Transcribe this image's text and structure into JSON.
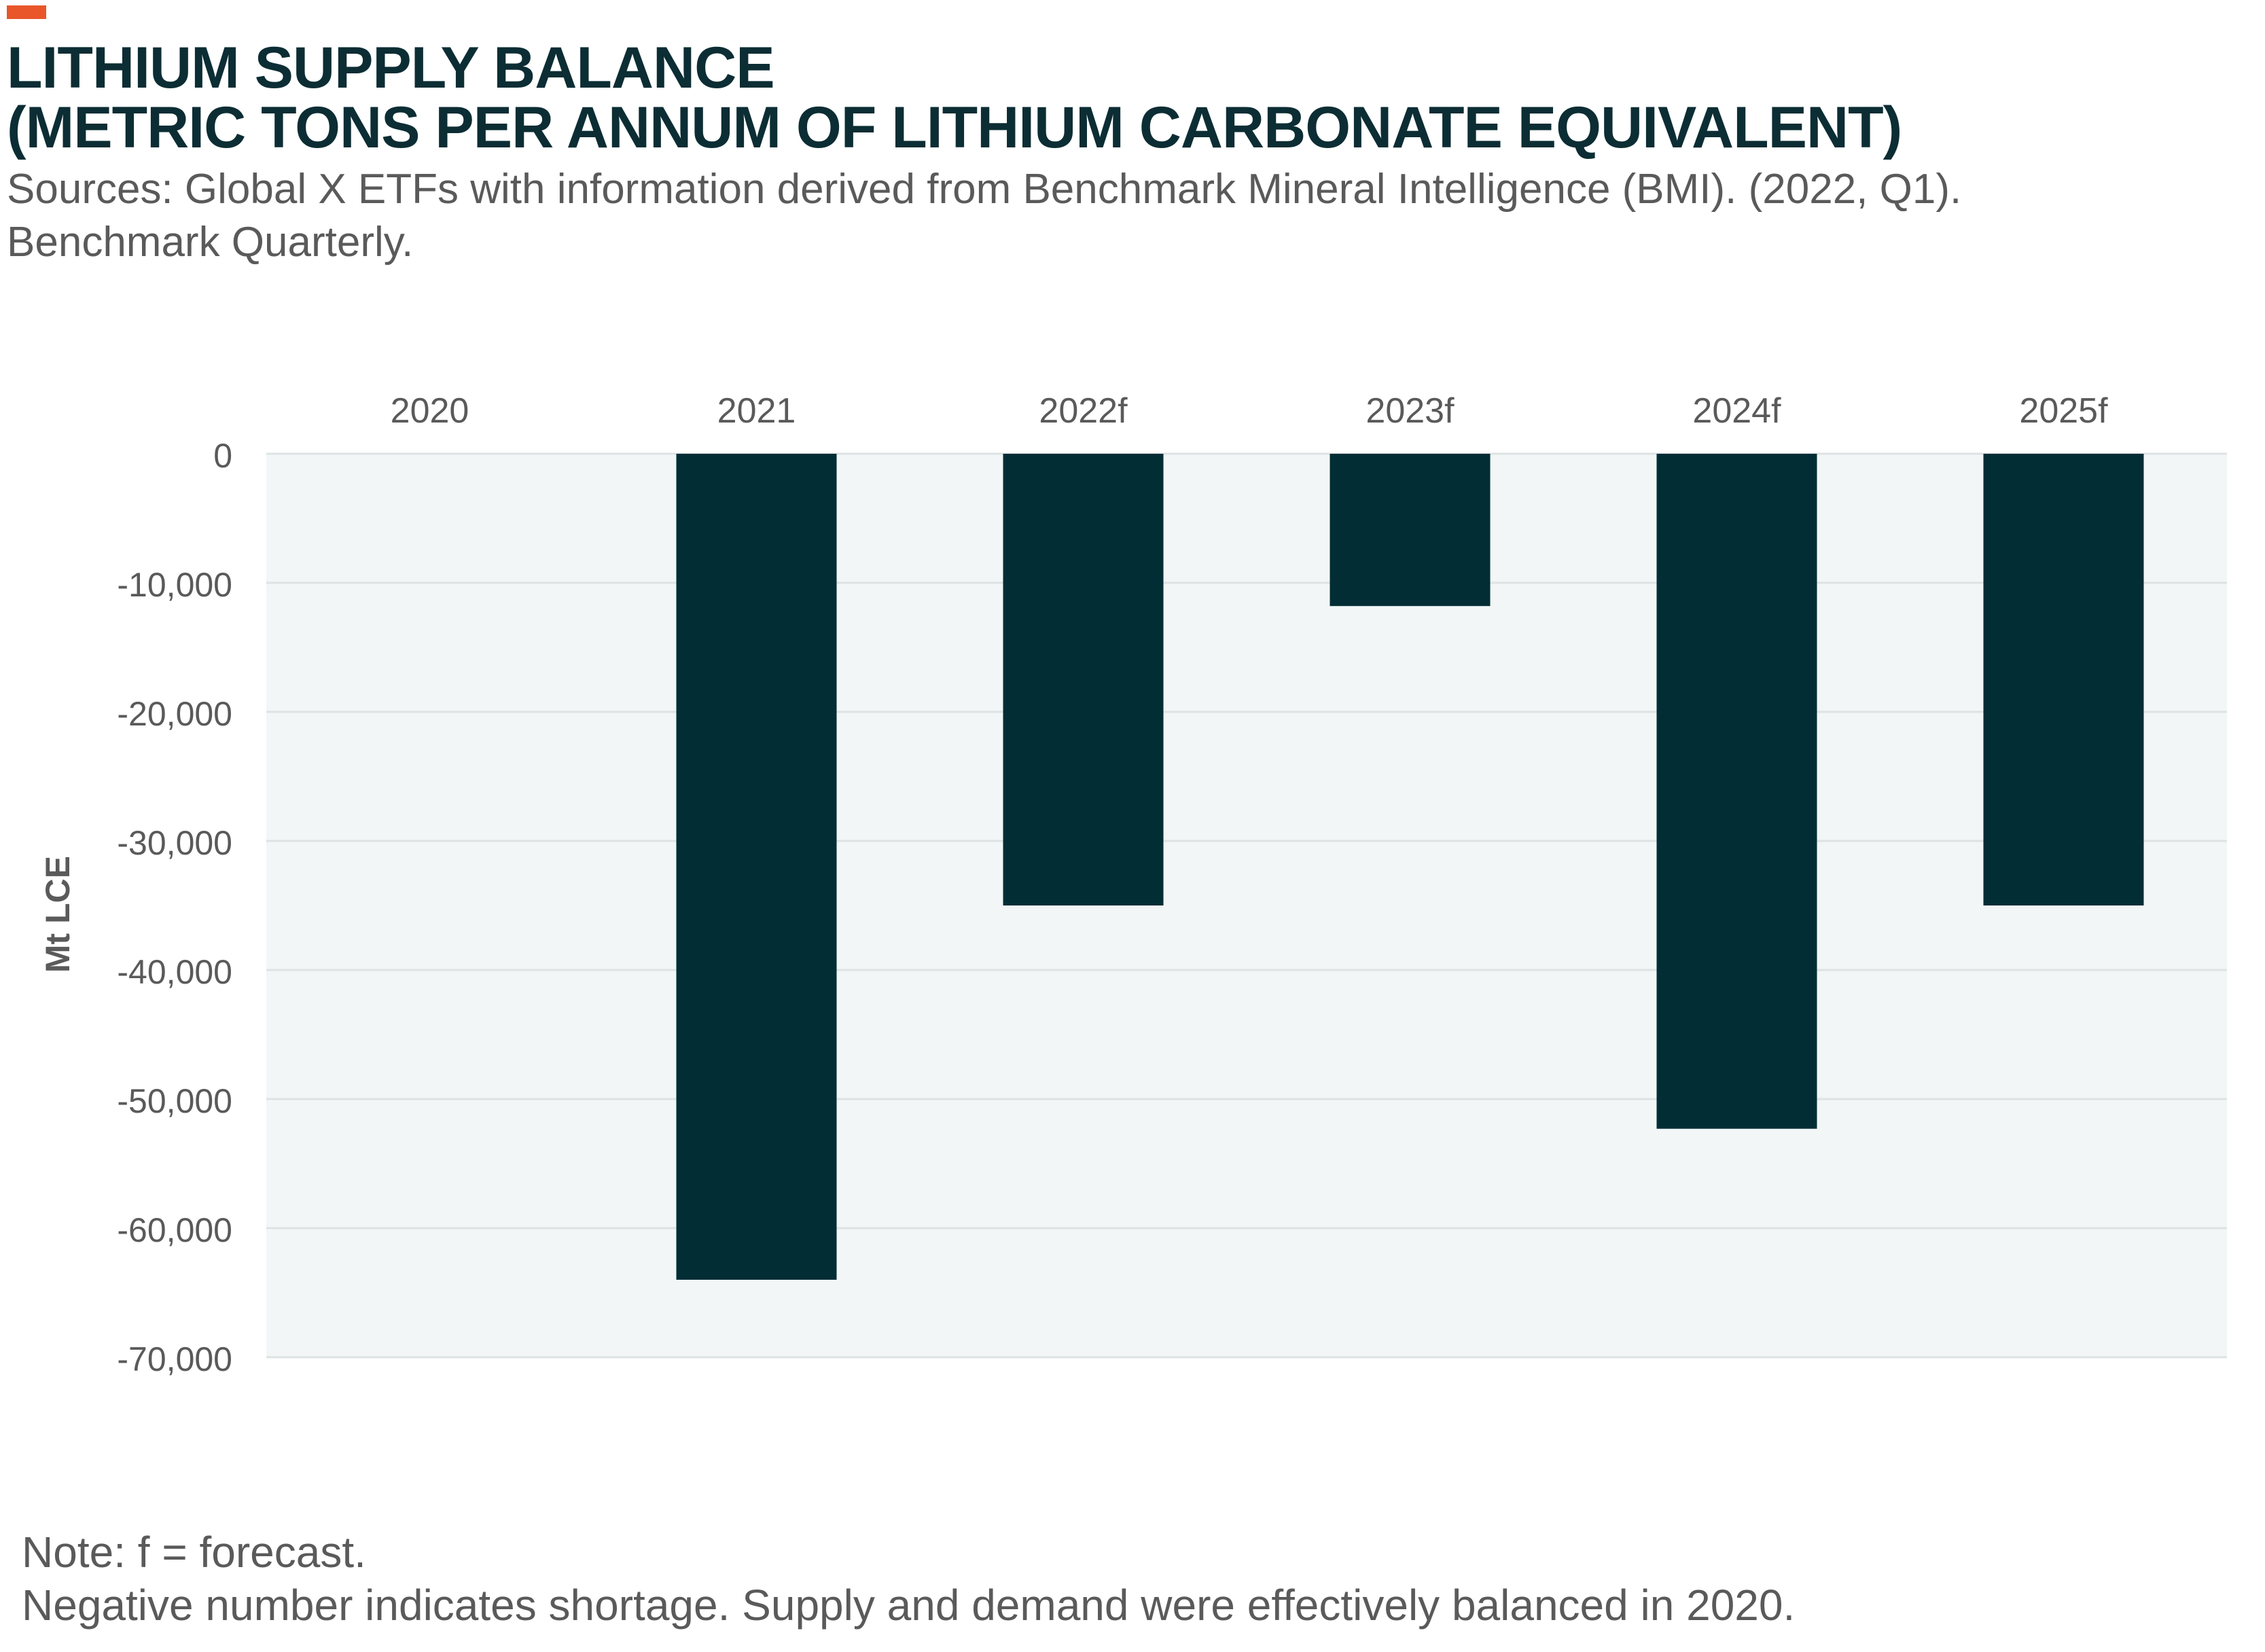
{
  "header": {
    "title_line1": "LITHIUM SUPPLY BALANCE",
    "title_line2": "(METRIC TONS PER ANNUM OF LITHIUM CARBONATE EQUIVALENT)",
    "source_line1": "Sources: Global X ETFs with information derived from Benchmark Mineral Intelligence (BMI). (2022, Q1).",
    "source_line2": "Benchmark Quarterly."
  },
  "colors": {
    "accent": "#e8562a",
    "bar": "#022d35",
    "plot_bg": "#f2f6f6",
    "grid": "#dde3e4",
    "text": "#5a5a5a",
    "title": "#0c2d34"
  },
  "chart_data": {
    "type": "bar",
    "categories": [
      "2020",
      "2021",
      "2022f",
      "2023f",
      "2024f",
      "2025f"
    ],
    "values": [
      0,
      -64000,
      -35000,
      -11800,
      -52300,
      -35000
    ],
    "ylabel": "Mt LCE",
    "xlabel": "",
    "ylim": [
      -70000,
      0
    ],
    "yticks": [
      0,
      -10000,
      -20000,
      -30000,
      -40000,
      -50000,
      -60000,
      -70000
    ],
    "ytick_labels": [
      "0",
      "-10,000",
      "-20,000",
      "-30,000",
      "-40,000",
      "-50,000",
      "-60,000",
      "-70,000"
    ],
    "x_axis_position": "top",
    "grid": true
  },
  "notes": {
    "line1": "Note: f = forecast.",
    "line2": "Negative number indicates shortage. Supply and demand were effectively balanced in 2020."
  }
}
